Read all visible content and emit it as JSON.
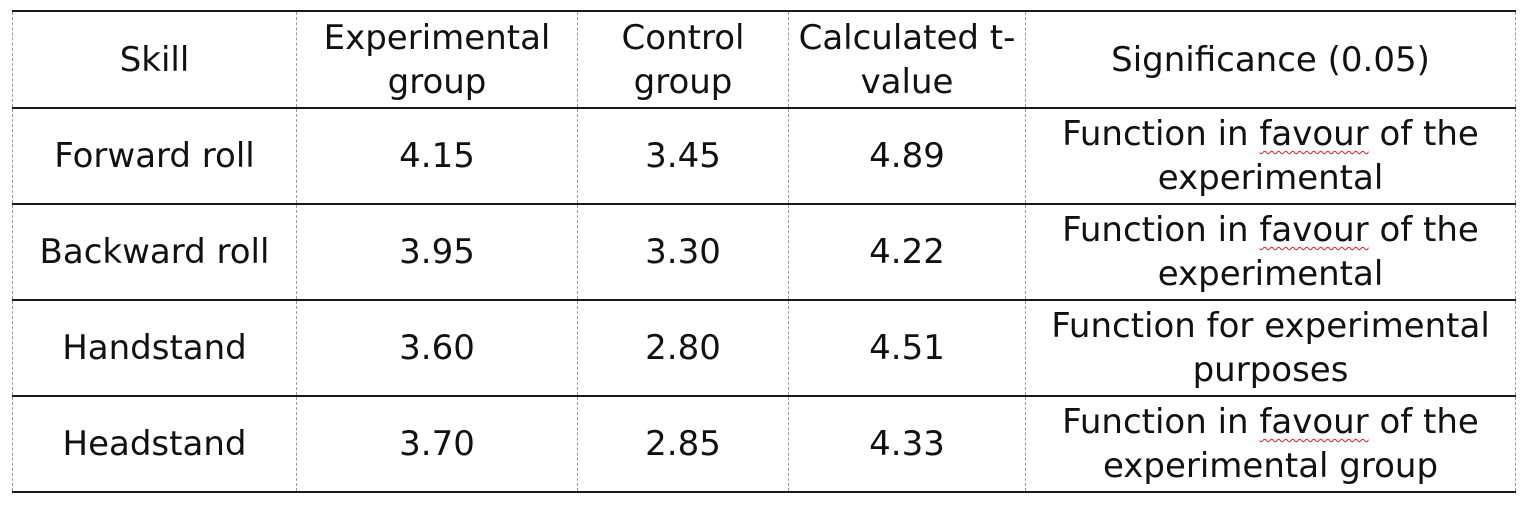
{
  "table": {
    "headers": [
      "Skill",
      "Experimental group",
      "Control group",
      "Calculated t-value",
      "Significance (0.05)"
    ],
    "rows": [
      {
        "skill": "Forward roll",
        "experimental": "4.15",
        "control": "3.45",
        "t_value": "4.89",
        "significance": {
          "part1": "Function in ",
          "flagged": "favour",
          "part2": " of the experimental"
        }
      },
      {
        "skill": "Backward roll",
        "experimental": "3.95",
        "control": "3.30",
        "t_value": "4.22",
        "significance": {
          "part1": "Function in ",
          "flagged": "favour",
          "part2": " of the experimental"
        }
      },
      {
        "skill": "Handstand",
        "experimental": "3.60",
        "control": "2.80",
        "t_value": "4.51",
        "significance": {
          "part1": "Function for experimental purposes",
          "flagged": "",
          "part2": ""
        }
      },
      {
        "skill": "Headstand",
        "experimental": "3.70",
        "control": "2.85",
        "t_value": "4.33",
        "significance": {
          "part1": "Function in ",
          "flagged": "favour",
          "part2": " of the experimental group"
        }
      }
    ]
  },
  "colors": {
    "text": "#111111",
    "rule": "#1a1a1a",
    "column_divider": "#9a9a9a",
    "spellcheck_underline": "#d32020"
  }
}
